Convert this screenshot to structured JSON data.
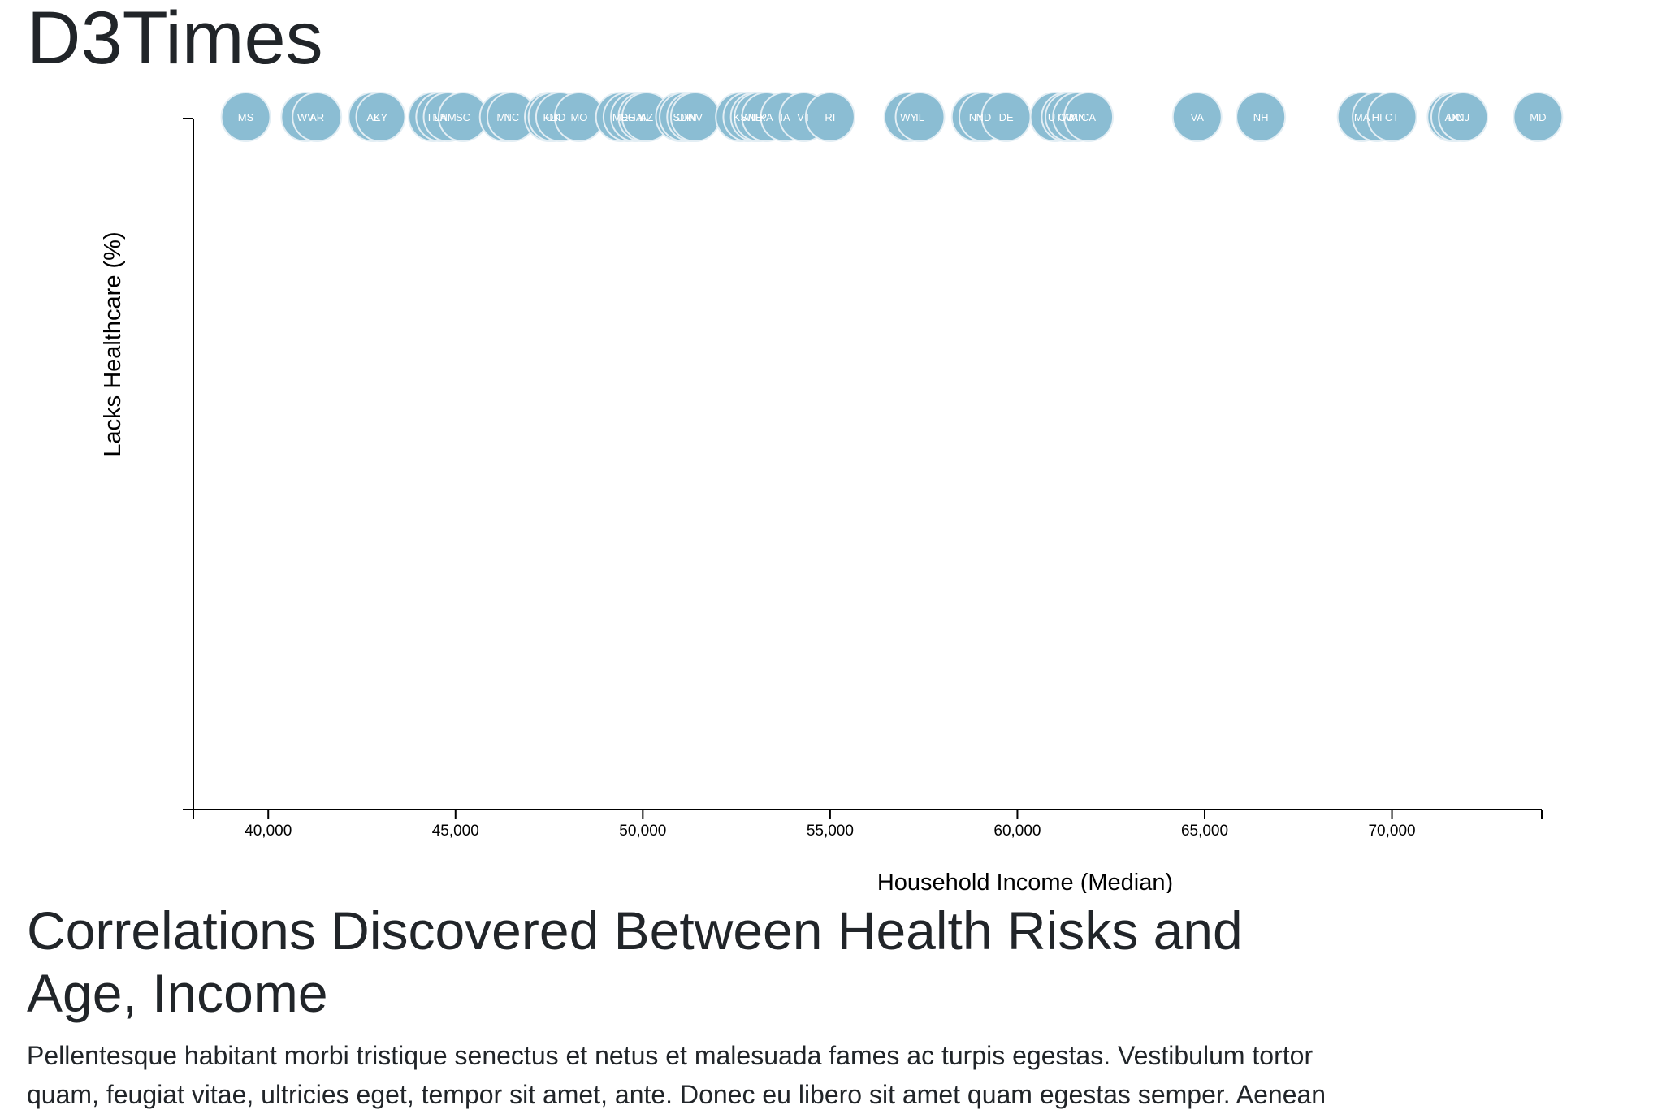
{
  "page": {
    "site_title": "D3Times",
    "article_heading": "Correlations Discovered Between Health Risks and Age, Income",
    "article_body": "Pellentesque habitant morbi tristique senectus et netus et malesuada fames ac turpis egestas. Vestibulum tortor quam, feugiat vitae, ultricies eget, tempor sit amet, ante. Donec eu libero sit amet quam egestas semper. Aenean"
  },
  "chart_data": {
    "type": "scatter",
    "title": "",
    "xlabel": "Household Income (Median)",
    "ylabel": "Lacks Healthcare (%)",
    "xlim": [
      38000,
      74000
    ],
    "x_ticks": [
      40000,
      45000,
      50000,
      55000,
      60000,
      65000,
      70000
    ],
    "x_tick_labels": [
      "40,000",
      "45,000",
      "50,000",
      "55,000",
      "60,000",
      "65,000",
      "70,000"
    ],
    "y_ticks": [],
    "grid": false,
    "marker_color": "#8bbdd3",
    "marker_stroke": "#e3eef4",
    "label_color": "#ffffff",
    "points": [
      {
        "abbr": "MS",
        "x": 39400
      },
      {
        "abbr": "WV",
        "x": 41000
      },
      {
        "abbr": "AR",
        "x": 41300
      },
      {
        "abbr": "AL",
        "x": 42800
      },
      {
        "abbr": "KY",
        "x": 43000
      },
      {
        "abbr": "TN",
        "x": 44400
      },
      {
        "abbr": "LA",
        "x": 44600
      },
      {
        "abbr": "NM",
        "x": 44800
      },
      {
        "abbr": "SC",
        "x": 45200
      },
      {
        "abbr": "MT",
        "x": 46300
      },
      {
        "abbr": "NC",
        "x": 46500
      },
      {
        "abbr": "FL",
        "x": 47500
      },
      {
        "abbr": "OK",
        "x": 47600
      },
      {
        "abbr": "ID",
        "x": 47800
      },
      {
        "abbr": "MO",
        "x": 48300
      },
      {
        "abbr": "ME",
        "x": 49400
      },
      {
        "abbr": "OH",
        "x": 49600
      },
      {
        "abbr": "GA",
        "x": 49800
      },
      {
        "abbr": "MI",
        "x": 50000
      },
      {
        "abbr": "AZ",
        "x": 50100
      },
      {
        "abbr": "SD",
        "x": 51000
      },
      {
        "abbr": "OR",
        "x": 51100
      },
      {
        "abbr": "IN",
        "x": 51300
      },
      {
        "abbr": "NV",
        "x": 51400
      },
      {
        "abbr": "KS",
        "x": 52600
      },
      {
        "abbr": "WI",
        "x": 52800
      },
      {
        "abbr": "NE",
        "x": 53000
      },
      {
        "abbr": "TX",
        "x": 53100
      },
      {
        "abbr": "PA",
        "x": 53300
      },
      {
        "abbr": "IA",
        "x": 53800
      },
      {
        "abbr": "VT",
        "x": 54300
      },
      {
        "abbr": "RI",
        "x": 55000
      },
      {
        "abbr": "WY",
        "x": 57100
      },
      {
        "abbr": "IL",
        "x": 57400
      },
      {
        "abbr": "NY",
        "x": 58900
      },
      {
        "abbr": "ND",
        "x": 59100
      },
      {
        "abbr": "DE",
        "x": 59700
      },
      {
        "abbr": "UT",
        "x": 61000
      },
      {
        "abbr": "CO",
        "x": 61300
      },
      {
        "abbr": "WA",
        "x": 61400
      },
      {
        "abbr": "MN",
        "x": 61600
      },
      {
        "abbr": "CA",
        "x": 61900
      },
      {
        "abbr": "VA",
        "x": 64800
      },
      {
        "abbr": "NH",
        "x": 66500
      },
      {
        "abbr": "MA",
        "x": 69200
      },
      {
        "abbr": "HI",
        "x": 69600
      },
      {
        "abbr": "CT",
        "x": 70000
      },
      {
        "abbr": "AK",
        "x": 71600
      },
      {
        "abbr": "DC",
        "x": 71700
      },
      {
        "abbr": "NJ",
        "x": 71900
      },
      {
        "abbr": "MD",
        "x": 73900
      }
    ]
  }
}
